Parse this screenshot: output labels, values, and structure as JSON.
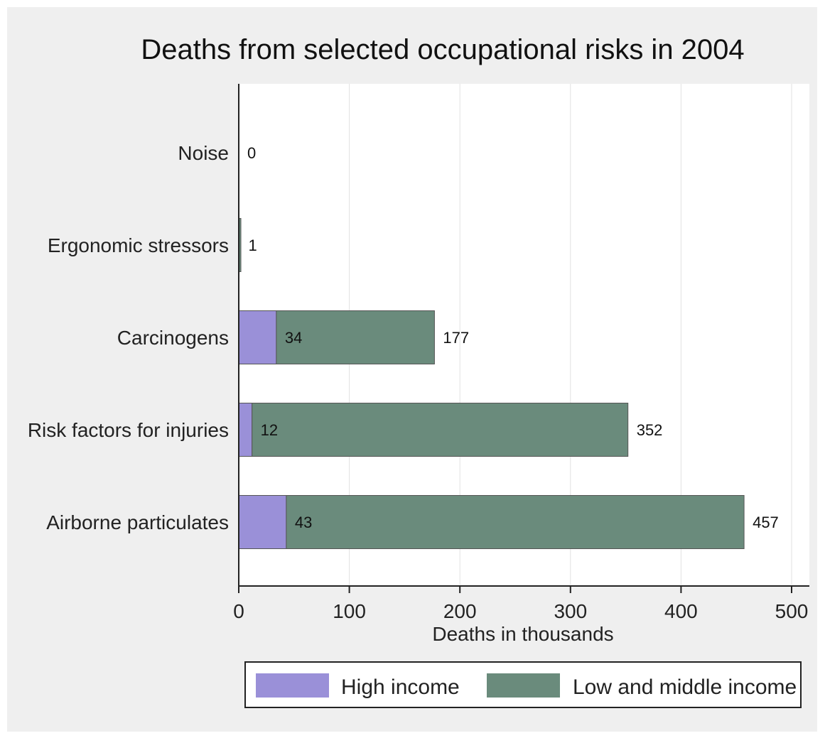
{
  "chart_data": {
    "type": "bar",
    "orientation": "horizontal",
    "stacked": true,
    "title": "Deaths from selected occupational risks in 2004",
    "xlabel": "Deaths in thousands",
    "ylabel": "",
    "xlim": [
      0,
      500
    ],
    "xticks": [
      "0",
      "100",
      "200",
      "300",
      "400",
      "500"
    ],
    "grid": true,
    "legend_position": "bottom",
    "categories": [
      "Noise",
      "Ergonomic stressors",
      "Carcinogens",
      "Risk factors for injuries",
      "Airborne particulates"
    ],
    "series": [
      {
        "name": "High income",
        "color": "#9a90d8",
        "values": [
          0,
          0,
          34,
          12,
          43
        ]
      },
      {
        "name": "Low and middle income",
        "color": "#6a8b7c",
        "values": [
          0,
          1,
          143,
          340,
          414
        ]
      }
    ],
    "inner_labels": [
      "",
      "",
      "34",
      "12",
      "43"
    ],
    "total_labels": [
      "0",
      "1",
      "177",
      "352",
      "457"
    ],
    "totals": [
      0,
      1,
      177,
      352,
      457
    ]
  }
}
